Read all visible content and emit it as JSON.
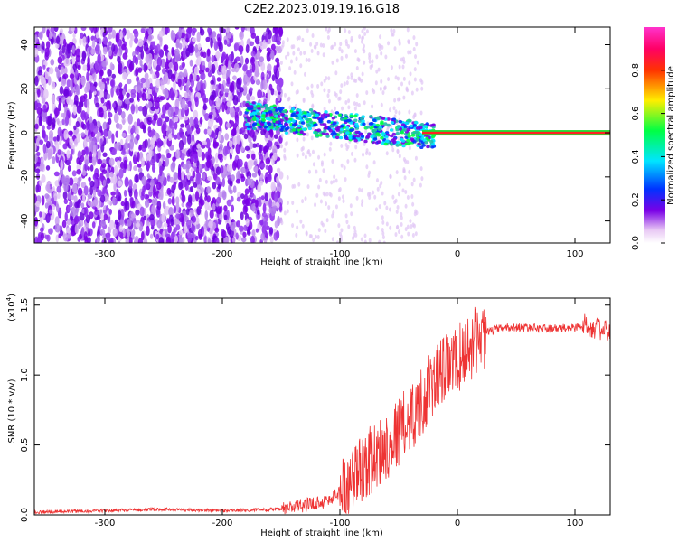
{
  "title": "C2E2.2023.019.19.16.G18",
  "chart_data": [
    {
      "type": "heatmap",
      "xlabel": "Height of straight line (km)",
      "ylabel": "Frequency (Hz)",
      "xlim": [
        -360,
        130
      ],
      "ylim": [
        -50,
        48
      ],
      "xticks": [
        -300,
        -200,
        -100,
        0,
        100
      ],
      "yticks": [
        -40,
        -20,
        0,
        20,
        40
      ],
      "colorbar": {
        "label": "Normalized spectral amplitude",
        "range": [
          0.0,
          1.0
        ],
        "ticks": [
          0.0,
          0.2,
          0.4,
          0.6,
          0.8
        ],
        "tick_labels": [
          "0.0",
          "0.2",
          "0.4",
          "0.6",
          "0.8"
        ]
      },
      "grid": false
    },
    {
      "type": "line",
      "xlabel": "Height of straight line (km)",
      "ylabel": "SNR (10 * v/v)",
      "y_multiplier_label": "(x10",
      "y_multiplier_exp": "4",
      "xlim": [
        -360,
        130
      ],
      "ylim": [
        0,
        1.55
      ],
      "xticks": [
        -300,
        -200,
        -100,
        0,
        100
      ],
      "yticks": [
        0.0,
        0.5,
        1.0,
        1.5
      ],
      "ytick_labels": [
        "0.0",
        "0.5",
        "1.0",
        "1.5"
      ],
      "color": "#ee3333",
      "x": [
        -360,
        -300,
        -250,
        -200,
        -150,
        -130,
        -110,
        -95,
        -80,
        -65,
        -50,
        -35,
        -20,
        -10,
        0,
        10,
        20,
        30,
        40,
        60,
        80,
        100,
        110,
        120,
        130
      ],
      "y": [
        0.02,
        0.03,
        0.04,
        0.03,
        0.04,
        0.07,
        0.1,
        0.2,
        0.35,
        0.45,
        0.6,
        0.75,
        0.95,
        1.05,
        1.1,
        1.2,
        1.28,
        1.32,
        1.34,
        1.34,
        1.33,
        1.34,
        1.36,
        1.33,
        1.3
      ],
      "grid": false
    }
  ],
  "colors": {
    "axis": "#000000",
    "line": "#ee3333",
    "heat_band": "#22dd33"
  }
}
